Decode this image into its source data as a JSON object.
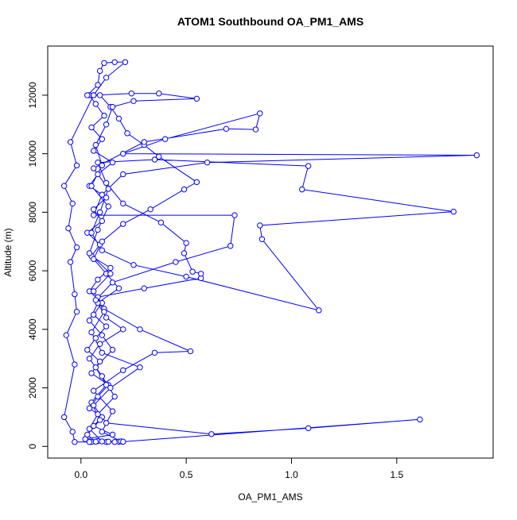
{
  "chart_data": {
    "type": "line",
    "title": "ATOM1 Southbound OA_PM1_AMS",
    "x_label": "OA_PM1_AMS",
    "y_label": "Altitude (m)",
    "color": "#0000ff",
    "xlim": [
      -0.158,
      1.958
    ],
    "ylim": [
      -400,
      13680
    ],
    "xticks": [
      {
        "value": 0,
        "label": "0.0"
      },
      {
        "value": 0.5,
        "label": "0.5"
      },
      {
        "value": 1,
        "label": "1.0"
      },
      {
        "value": 1.5,
        "label": "1.5"
      }
    ],
    "yticks": [
      0,
      2000,
      4000,
      6000,
      8000,
      10000,
      12000
    ],
    "x": [
      0.05,
      0.12,
      0.18,
      0.08,
      0.02,
      0.15,
      0.06,
      0.1,
      0.04,
      0.08,
      0.13,
      0.05,
      0.09,
      0.03,
      0.07,
      0.12,
      0.06,
      0.1,
      0.04,
      0.08,
      0.14,
      0.05,
      0.09,
      0.03,
      0.1,
      0.06,
      0.12,
      0.04,
      0.08,
      0.15,
      0.06,
      0.1,
      0.05,
      0.11,
      0.07,
      0.04,
      0.09,
      0.14,
      0.18,
      0.22,
      0.3,
      0.37,
      0.55,
      0.49,
      0.33,
      0.2,
      0.1,
      0.06,
      0.12,
      0.18,
      0.08,
      0.04,
      0.1,
      0.15,
      0.07,
      0.12,
      0.05,
      0.09,
      0.03,
      0.07,
      0.13,
      0.19,
      0.1,
      0.15,
      0.06,
      0.2,
      0.35,
      0.52,
      0.28,
      0.11,
      0.08,
      0.3,
      0.57,
      0.57,
      0.53,
      0.49,
      0.5,
      0.38,
      0.2,
      0.12,
      0.08,
      0.35,
      1.08,
      1.05,
      1.77,
      0.85,
      0.86,
      1.13,
      0.5,
      0.25,
      0.1,
      0.05,
      0.09,
      0.13,
      0.06,
      0.3,
      0.69,
      0.83,
      0.85,
      0.4,
      0.2,
      1.88,
      0.6,
      0.2,
      0.1,
      0.06,
      0.73,
      0.71,
      0.45,
      0.15,
      0.07,
      0.12,
      0.2,
      0.09,
      0.04,
      0.1,
      0.16,
      0.08,
      0.04,
      0.1,
      0.16,
      0.2,
      1.61,
      1.08,
      0.62,
      0.12,
      0.06,
      0.14,
      0.28,
      0.1,
      0.05,
      0.11,
      0.06,
      0.14,
      0.04,
      0.08,
      0.13,
      0.05,
      0.1,
      0.07,
      0.12,
      0.15,
      0.25,
      0.55,
      0.37,
      0.24,
      0.06,
      0.03,
      0.08,
      0.09,
      0.11,
      0.16,
      0.21,
      0.12,
      0.06,
      -0.05,
      -0.02,
      -0.08,
      -0.04,
      -0.06,
      -0.02,
      -0.05,
      -0.03,
      -0.02,
      -0.07,
      -0.03,
      -0.08,
      -0.04,
      -0.03,
      0.04
    ],
    "values": [
      150,
      150,
      160,
      180,
      250,
      400,
      700,
      1000,
      1300,
      1700,
      2100,
      2500,
      2900,
      3300,
      3700,
      4100,
      4500,
      4900,
      5300,
      5700,
      6100,
      6500,
      6900,
      7300,
      7700,
      8100,
      8500,
      8900,
      9300,
      9700,
      10100,
      10500,
      10900,
      11300,
      11700,
      12000,
      12000,
      11600,
      11200,
      10700,
      10300,
      9900,
      9030,
      8780,
      8100,
      7600,
      7000,
      6400,
      5900,
      5400,
      4900,
      4300,
      3800,
      3300,
      2700,
      2100,
      1500,
      900,
      400,
      160,
      160,
      170,
      500,
      1200,
      1900,
      2600,
      3200,
      3250,
      4000,
      4700,
      5100,
      5400,
      5750,
      5900,
      5970,
      6600,
      6950,
      7650,
      8300,
      9000,
      9700,
      9800,
      9580,
      8780,
      8020,
      7550,
      7080,
      4650,
      5800,
      6200,
      6700,
      7300,
      8000,
      8800,
      9500,
      10400,
      10850,
      10830,
      11380,
      10500,
      10000,
      9950,
      9700,
      9300,
      8600,
      7900,
      7900,
      6850,
      6300,
      5600,
      5000,
      4400,
      4000,
      3500,
      3000,
      2400,
      1700,
      1100,
      600,
      170,
      150,
      160,
      920,
      620,
      420,
      800,
      1400,
      2000,
      2700,
      3200,
      3900,
      4600,
      5300,
      5900,
      6600,
      7400,
      8200,
      8900,
      9600,
      10300,
      11000,
      11600,
      11800,
      11880,
      12060,
      12060,
      12000,
      12000,
      12350,
      12830,
      13100,
      13130,
      13130,
      12600,
      12000,
      10400,
      9600,
      8900,
      8300,
      7450,
      6800,
      6300,
      5200,
      4600,
      3800,
      2800,
      1000,
      500,
      150,
      150
    ]
  }
}
